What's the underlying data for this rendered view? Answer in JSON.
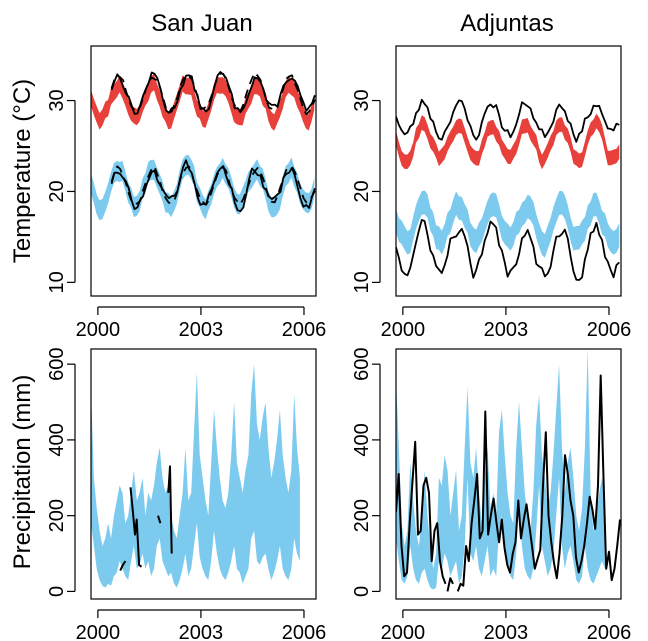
{
  "colors": {
    "tmax_band": "#e8413c",
    "tmin_band": "#7ccbef",
    "precip_band": "#7ccbef",
    "observed_line": "#000000",
    "background": "#ffffff"
  },
  "row_labels": {
    "temperature": "Temperature (°C)",
    "precipitation": "Precipitation (mm)"
  },
  "column_titles": [
    "San Juan",
    "Adjuntas"
  ],
  "chart_data": [
    {
      "type": "line",
      "panel": "top-left",
      "title": "San Juan",
      "ylabel": "Temperature (°C)",
      "xlim": [
        1999.8,
        2006.35
      ],
      "ylim": [
        8.5,
        36
      ],
      "xticks": [
        2000,
        2003,
        2006
      ],
      "yticks": [
        10,
        20,
        30
      ],
      "series": [
        {
          "style": "band",
          "color": "#e8413c",
          "center": 30.0,
          "amplitude": 1.8,
          "half_width": 0.9,
          "noise": 0.5,
          "seed": 11,
          "start": 1999.8,
          "end": 2006.35
        },
        {
          "style": "band",
          "color": "#7ccbef",
          "center": 20.5,
          "amplitude": 2.0,
          "half_width": 1.1,
          "noise": 0.5,
          "seed": 12,
          "start": 1999.8,
          "end": 2006.35
        },
        {
          "style": "solid",
          "color": "#000000",
          "center": 30.8,
          "amplitude": 2.0,
          "noise": 0.5,
          "seed": 13,
          "start": 2000.4,
          "end": 2006.35
        },
        {
          "style": "dashed",
          "color": "#000000",
          "center": 30.9,
          "amplitude": 2.0,
          "noise": 0.3,
          "seed": 14,
          "start": 2000.4,
          "end": 2006.35
        },
        {
          "style": "solid",
          "color": "#000000",
          "center": 20.5,
          "amplitude": 2.1,
          "noise": 0.6,
          "seed": 15,
          "start": 2000.4,
          "end": 2006.35
        },
        {
          "style": "dashed",
          "color": "#000000",
          "center": 20.6,
          "amplitude": 2.0,
          "noise": 0.3,
          "seed": 16,
          "start": 2000.4,
          "end": 2006.35
        }
      ]
    },
    {
      "type": "line",
      "panel": "top-right",
      "title": "Adjuntas",
      "ylabel": "",
      "xlim": [
        1999.8,
        2006.35
      ],
      "ylim": [
        8.5,
        36
      ],
      "xticks": [
        2000,
        2003,
        2006
      ],
      "yticks": [
        10,
        20,
        30
      ],
      "series": [
        {
          "style": "band",
          "color": "#e8413c",
          "center": 25.5,
          "amplitude": 2.0,
          "half_width": 0.8,
          "noise": 0.5,
          "seed": 21,
          "start": 1999.8,
          "end": 2006.35
        },
        {
          "style": "band",
          "color": "#7ccbef",
          "center": 16.5,
          "amplitude": 1.8,
          "half_width": 1.3,
          "noise": 0.5,
          "seed": 22,
          "start": 1999.8,
          "end": 2006.35
        },
        {
          "style": "solid",
          "color": "#000000",
          "center": 28.0,
          "amplitude": 1.8,
          "noise": 0.6,
          "seed": 23,
          "start": 1999.8,
          "end": 2006.35
        },
        {
          "style": "solid",
          "color": "#000000",
          "center": 13.5,
          "amplitude": 2.5,
          "noise": 0.8,
          "seed": 24,
          "start": 1999.8,
          "end": 2006.35
        }
      ]
    },
    {
      "type": "area",
      "panel": "bottom-left",
      "title": "",
      "ylabel": "Precipitation (mm)",
      "xlim": [
        1999.8,
        2006.35
      ],
      "ylim": [
        -20,
        640
      ],
      "xticks": [
        2000,
        2003,
        2006
      ],
      "yticks": [
        0,
        200,
        400,
        600
      ],
      "band": {
        "color": "#7ccbef",
        "x_start": 1999.8,
        "x_step": 0.0833,
        "lower": [
          180,
          120,
          60,
          30,
          15,
          10,
          20,
          15,
          40,
          50,
          80,
          60,
          40,
          30,
          80,
          120,
          60,
          70,
          100,
          60,
          80,
          40,
          60,
          120,
          140,
          80,
          60,
          40,
          50,
          20,
          10,
          30,
          60,
          100,
          40,
          60,
          120,
          180,
          90,
          60,
          40,
          30,
          80,
          160,
          100,
          60,
          40,
          30,
          50,
          80,
          120,
          60,
          50,
          20,
          40,
          60,
          140,
          160,
          80,
          70,
          90,
          100,
          60,
          30,
          50,
          80,
          120,
          60,
          40,
          30,
          60,
          140,
          100,
          80
        ],
        "upper": [
          540,
          300,
          220,
          160,
          120,
          140,
          180,
          140,
          200,
          240,
          280,
          260,
          180,
          200,
          260,
          320,
          240,
          260,
          300,
          200,
          260,
          240,
          280,
          340,
          380,
          300,
          260,
          280,
          200,
          160,
          140,
          200,
          260,
          380,
          240,
          260,
          420,
          580,
          360,
          300,
          240,
          200,
          340,
          480,
          380,
          300,
          240,
          220,
          260,
          360,
          500,
          340,
          300,
          260,
          320,
          360,
          520,
          600,
          440,
          400,
          460,
          500,
          380,
          300,
          340,
          400,
          480,
          360,
          300,
          260,
          320,
          520,
          380,
          300
        ]
      },
      "observed_segments": [
        [
          [
            2000.65,
            55
          ],
          [
            2000.73,
            70
          ],
          [
            2000.8,
            80
          ]
        ],
        [
          [
            2000.95,
            275
          ],
          [
            2001.02,
            210
          ],
          [
            2001.08,
            150
          ],
          [
            2001.13,
            190
          ],
          [
            2001.2,
            70
          ],
          [
            2001.27,
            65
          ]
        ],
        [
          [
            2001.75,
            200
          ],
          [
            2001.82,
            180
          ]
        ],
        [
          [
            2002.05,
            260
          ],
          [
            2002.1,
            330
          ],
          [
            2002.15,
            100
          ]
        ]
      ]
    },
    {
      "type": "area",
      "panel": "bottom-right",
      "title": "",
      "ylabel": "",
      "xlim": [
        1999.8,
        2006.35
      ],
      "ylim": [
        -20,
        640
      ],
      "xticks": [
        2000,
        2003,
        2006
      ],
      "yticks": [
        0,
        200,
        400,
        600
      ],
      "band": {
        "color": "#7ccbef",
        "x_start": 1999.8,
        "x_step": 0.0833,
        "lower": [
          140,
          80,
          30,
          20,
          40,
          120,
          60,
          30,
          20,
          50,
          60,
          30,
          10,
          5,
          10,
          80,
          60,
          100,
          80,
          40,
          60,
          80,
          20,
          40,
          120,
          300,
          100,
          80,
          120,
          60,
          40,
          80,
          120,
          40,
          60,
          40,
          160,
          200,
          100,
          60,
          40,
          30,
          100,
          240,
          120,
          60,
          40,
          30,
          60,
          160,
          280,
          120,
          80,
          40,
          60,
          100,
          200,
          300,
          120,
          60,
          100,
          120,
          80,
          30,
          20,
          40,
          120,
          60,
          30,
          20,
          40,
          60,
          80,
          60
        ],
        "upper": [
          560,
          380,
          180,
          120,
          160,
          340,
          240,
          160,
          120,
          200,
          320,
          200,
          120,
          60,
          100,
          300,
          280,
          360,
          320,
          200,
          260,
          320,
          160,
          200,
          380,
          540,
          340,
          300,
          380,
          260,
          180,
          300,
          380,
          220,
          260,
          200,
          420,
          480,
          360,
          260,
          200,
          180,
          380,
          500,
          380,
          260,
          200,
          160,
          260,
          440,
          520,
          360,
          300,
          220,
          260,
          360,
          480,
          600,
          380,
          260,
          340,
          380,
          300,
          200,
          160,
          220,
          380,
          640,
          260,
          160,
          200,
          260,
          300,
          240
        ]
      },
      "observed_segments": [
        [
          [
            1999.8,
            210
          ],
          [
            1999.88,
            310
          ],
          [
            1999.96,
            120
          ],
          [
            2000.04,
            40
          ],
          [
            2000.12,
            50
          ],
          [
            2000.2,
            180
          ],
          [
            2000.28,
            290
          ],
          [
            2000.36,
            395
          ],
          [
            2000.44,
            150
          ],
          [
            2000.52,
            160
          ],
          [
            2000.6,
            280
          ],
          [
            2000.68,
            300
          ],
          [
            2000.76,
            260
          ],
          [
            2000.84,
            80
          ],
          [
            2000.92,
            160
          ],
          [
            2001.0,
            180
          ],
          [
            2001.08,
            80
          ],
          [
            2001.16,
            40
          ],
          [
            2001.24,
            20
          ]
        ],
        [
          [
            2001.3,
            0
          ],
          [
            2001.38,
            35
          ],
          [
            2001.46,
            20
          ]
        ],
        [
          [
            2001.6,
            0
          ],
          [
            2001.68,
            20
          ],
          [
            2001.76,
            15
          ],
          [
            2001.84,
            120
          ],
          [
            2001.92,
            80
          ],
          [
            2002.0,
            180
          ],
          [
            2002.08,
            240
          ],
          [
            2002.16,
            310
          ],
          [
            2002.24,
            140
          ],
          [
            2002.32,
            160
          ],
          [
            2002.4,
            475
          ],
          [
            2002.48,
            150
          ],
          [
            2002.56,
            200
          ],
          [
            2002.64,
            245
          ],
          [
            2002.72,
            185
          ],
          [
            2002.8,
            130
          ],
          [
            2002.88,
            190
          ],
          [
            2002.96,
            115
          ],
          [
            2003.04,
            70
          ],
          [
            2003.12,
            50
          ],
          [
            2003.2,
            100
          ],
          [
            2003.28,
            130
          ],
          [
            2003.36,
            240
          ],
          [
            2003.44,
            140
          ],
          [
            2003.52,
            190
          ],
          [
            2003.6,
            230
          ],
          [
            2003.68,
            175
          ],
          [
            2003.76,
            120
          ],
          [
            2003.84,
            60
          ],
          [
            2003.92,
            85
          ],
          [
            2004.0,
            110
          ],
          [
            2004.08,
            280
          ],
          [
            2004.16,
            420
          ],
          [
            2004.24,
            200
          ],
          [
            2004.32,
            130
          ],
          [
            2004.4,
            75
          ],
          [
            2004.48,
            35
          ],
          [
            2004.56,
            100
          ],
          [
            2004.64,
            200
          ],
          [
            2004.72,
            360
          ],
          [
            2004.8,
            310
          ],
          [
            2004.88,
            240
          ],
          [
            2004.96,
            200
          ],
          [
            2005.04,
            90
          ],
          [
            2005.12,
            50
          ],
          [
            2005.2,
            80
          ],
          [
            2005.28,
            120
          ],
          [
            2005.36,
            180
          ],
          [
            2005.44,
            250
          ],
          [
            2005.52,
            215
          ],
          [
            2005.6,
            165
          ],
          [
            2005.68,
            280
          ],
          [
            2005.76,
            570
          ],
          [
            2005.84,
            300
          ],
          [
            2005.92,
            60
          ],
          [
            2006.0,
            105
          ],
          [
            2006.08,
            30
          ],
          [
            2006.16,
            60
          ],
          [
            2006.24,
            120
          ],
          [
            2006.32,
            190
          ]
        ]
      ]
    }
  ]
}
